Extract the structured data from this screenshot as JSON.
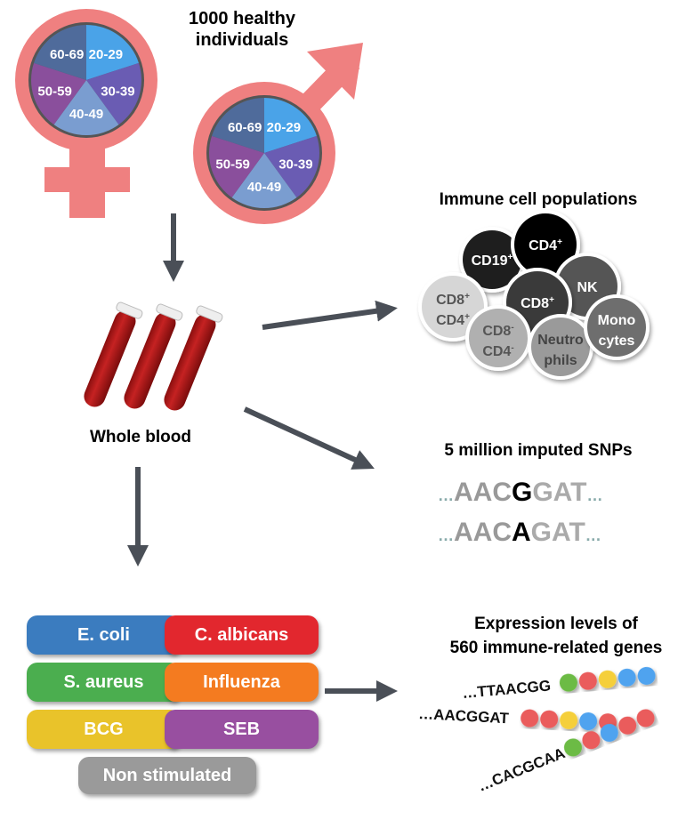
{
  "title_line1": "1000 healthy",
  "title_line2": "individuals",
  "age_groups": [
    {
      "label": "20-29",
      "color": "#4aa3e8"
    },
    {
      "label": "30-39",
      "color": "#6a5cb3"
    },
    {
      "label": "40-49",
      "color": "#7a9dd0"
    },
    {
      "label": "50-59",
      "color": "#8a4f9c"
    },
    {
      "label": "60-69",
      "color": "#4f6b9b"
    }
  ],
  "symbol_color": "#ef8080",
  "whole_blood": "Whole blood",
  "immune_title": "Immune cell populations",
  "cells": [
    {
      "l1": "CD19",
      "sup1": "+",
      "l2": "",
      "sup2": "",
      "fill": "#1e1e1e",
      "text": "#ffffff"
    },
    {
      "l1": "CD4",
      "sup1": "+",
      "l2": "",
      "sup2": "",
      "fill": "#000000",
      "text": "#ffffff"
    },
    {
      "l1": "NK",
      "sup1": "",
      "l2": "",
      "sup2": "",
      "fill": "#555555",
      "text": "#ffffff"
    },
    {
      "l1": "CD8",
      "sup1": "+",
      "l2": "CD4",
      "sup2": "+",
      "fill": "#d6d6d6",
      "text": "#555555"
    },
    {
      "l1": "CD8",
      "sup1": "+",
      "l2": "",
      "sup2": "",
      "fill": "#3a3a3a",
      "text": "#ffffff"
    },
    {
      "l1": "CD8",
      "sup1": "-",
      "l2": "CD4",
      "sup2": "-",
      "fill": "#b0b0b0",
      "text": "#555555"
    },
    {
      "l1": "Neutro",
      "sup1": "",
      "l2": "phils",
      "sup2": "",
      "fill": "#9a9a9a",
      "text": "#444444"
    },
    {
      "l1": "Mono",
      "sup1": "",
      "l2": "cytes",
      "sup2": "",
      "fill": "#6e6e6e",
      "text": "#ffffff"
    }
  ],
  "snp_title": "5 million imputed SNPs",
  "snp_seqs": [
    {
      "pre": "AAC",
      "var": "G",
      "post": "GAT"
    },
    {
      "pre": "AAC",
      "var": "A",
      "post": "GAT"
    }
  ],
  "ellipsis": "…",
  "expr_title1": "Expression levels of",
  "expr_title2": "560 immune-related genes",
  "expr_rows": [
    {
      "seq": "…TTAACGG",
      "beads": [
        "#6cbb45",
        "#ea5c5c",
        "#f5cf3a",
        "#4fa3ef",
        "#4fa3ef"
      ]
    },
    {
      "seq": "…AACGGAT",
      "beads": [
        "#ea5c5c",
        "#ea5c5c",
        "#f5cf3a",
        "#4fa3ef",
        "#ea5c5c"
      ]
    },
    {
      "seq": "…CACGCAA",
      "beads": [
        "#6cbb45",
        "#ea5c5c",
        "#4fa3ef",
        "#ea5c5c",
        "#ea5c5c"
      ]
    }
  ],
  "stimuli": [
    {
      "label": "E. coli",
      "color": "#3b7cbf"
    },
    {
      "label": "C. albicans",
      "color": "#e2272e"
    },
    {
      "label": "S. aureus",
      "color": "#4bae4f"
    },
    {
      "label": "Influenza",
      "color": "#f47b20"
    },
    {
      "label": "BCG",
      "color": "#e9c32a"
    },
    {
      "label": "SEB",
      "color": "#984fa0"
    },
    {
      "label": "Non stimulated",
      "color": "#9a9a9a"
    }
  ]
}
